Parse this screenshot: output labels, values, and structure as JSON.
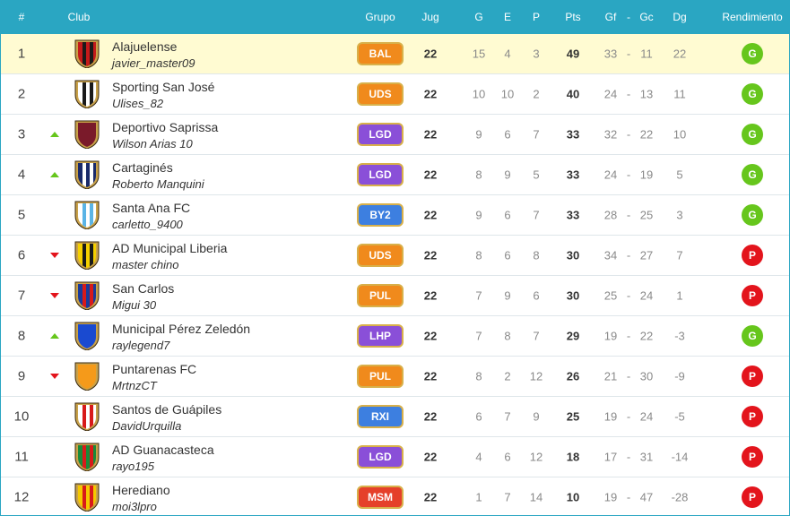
{
  "header": {
    "pos": "#",
    "club": "Club",
    "group": "Grupo",
    "jug": "Jug",
    "g": "G",
    "e": "E",
    "p": "P",
    "pts": "Pts",
    "gf": "Gf",
    "sep": "-",
    "gc": "Gc",
    "dg": "Dg",
    "rend": "Rendimiento"
  },
  "rend_colors": {
    "G": "#66c61c",
    "P": "#e3141c"
  },
  "highlight_color": "#fffbd2",
  "rows": [
    {
      "pos": 1,
      "club": "Alajuelense",
      "manager": "javier_master09",
      "crest": [
        "#c41a1a",
        "#1a1a1a"
      ],
      "group": "BAL",
      "group_color": "#f08a1c",
      "jug": 22,
      "g": 15,
      "e": 4,
      "p": 3,
      "pts": 49,
      "gf": 33,
      "gc": 11,
      "dg": 22,
      "rend": "G",
      "highlight": true
    },
    {
      "pos": 2,
      "club": "Sporting San José",
      "manager": "Ulises_82",
      "crest": [
        "#ffffff",
        "#1a1a1a"
      ],
      "group": "UDS",
      "group_color": "#f08a1c",
      "jug": 22,
      "g": 10,
      "e": 10,
      "p": 2,
      "pts": 40,
      "gf": 24,
      "gc": 13,
      "dg": 11,
      "rend": "G"
    },
    {
      "pos": 3,
      "trend": "up",
      "club": "Deportivo Saprissa",
      "manager": "Wilson Arias 10",
      "crest": [
        "#7a1a2a",
        "#7a1a2a"
      ],
      "group": "LGD",
      "group_color": "#8a4fd8",
      "jug": 22,
      "g": 9,
      "e": 6,
      "p": 7,
      "pts": 33,
      "gf": 32,
      "gc": 22,
      "dg": 10,
      "rend": "G"
    },
    {
      "pos": 4,
      "trend": "up",
      "club": "Cartaginés",
      "manager": "Roberto Manquini",
      "crest": [
        "#1a2a6a",
        "#ffffff"
      ],
      "group": "LGD",
      "group_color": "#8a4fd8",
      "jug": 22,
      "g": 8,
      "e": 9,
      "p": 5,
      "pts": 33,
      "gf": 24,
      "gc": 19,
      "dg": 5,
      "rend": "G"
    },
    {
      "pos": 5,
      "club": "Santa Ana FC",
      "manager": "carletto_9400",
      "crest": [
        "#ffffff",
        "#5ab4e6"
      ],
      "group": "BY2",
      "group_color": "#3d7fe0",
      "jug": 22,
      "g": 9,
      "e": 6,
      "p": 7,
      "pts": 33,
      "gf": 28,
      "gc": 25,
      "dg": 3,
      "rend": "G"
    },
    {
      "pos": 6,
      "trend": "down",
      "club": "AD Municipal Liberia",
      "manager": "master chino",
      "crest": [
        "#f5d000",
        "#1a1a1a"
      ],
      "group": "UDS",
      "group_color": "#f08a1c",
      "jug": 22,
      "g": 8,
      "e": 6,
      "p": 8,
      "pts": 30,
      "gf": 34,
      "gc": 27,
      "dg": 7,
      "rend": "P"
    },
    {
      "pos": 7,
      "trend": "down",
      "club": "San Carlos",
      "manager": "Migui 30",
      "crest": [
        "#1a3a9a",
        "#d81a1a"
      ],
      "group": "PUL",
      "group_color": "#f08a1c",
      "jug": 22,
      "g": 7,
      "e": 9,
      "p": 6,
      "pts": 30,
      "gf": 25,
      "gc": 24,
      "dg": 1,
      "rend": "P"
    },
    {
      "pos": 8,
      "trend": "up",
      "club": "Municipal Pérez Zeledón",
      "manager": "raylegend7",
      "crest": [
        "#1a4ad0",
        "#1a4ad0"
      ],
      "group": "LHP",
      "group_color": "#8a4fd8",
      "jug": 22,
      "g": 7,
      "e": 8,
      "p": 7,
      "pts": 29,
      "gf": 19,
      "gc": 22,
      "dg": -3,
      "rend": "G"
    },
    {
      "pos": 9,
      "trend": "down",
      "club": "Puntarenas FC",
      "manager": "MrtnzCT",
      "crest": [
        "#f59a1a",
        "#f59a1a"
      ],
      "group": "PUL",
      "group_color": "#f08a1c",
      "jug": 22,
      "g": 8,
      "e": 2,
      "p": 12,
      "pts": 26,
      "gf": 21,
      "gc": 30,
      "dg": -9,
      "rend": "P"
    },
    {
      "pos": 10,
      "club": "Santos de Guápiles",
      "manager": "DavidUrquilla",
      "crest": [
        "#ffffff",
        "#d81a1a"
      ],
      "group": "RXI",
      "group_color": "#3d7fe0",
      "jug": 22,
      "g": 6,
      "e": 7,
      "p": 9,
      "pts": 25,
      "gf": 19,
      "gc": 24,
      "dg": -5,
      "rend": "P"
    },
    {
      "pos": 11,
      "club": "AD Guanacasteca",
      "manager": "rayo195",
      "crest": [
        "#1a8a3a",
        "#d81a1a"
      ],
      "group": "LGD",
      "group_color": "#8a4fd8",
      "jug": 22,
      "g": 4,
      "e": 6,
      "p": 12,
      "pts": 18,
      "gf": 17,
      "gc": 31,
      "dg": -14,
      "rend": "P"
    },
    {
      "pos": 12,
      "club": "Herediano",
      "manager": "moi3lpro",
      "crest": [
        "#f5c800",
        "#d81a1a"
      ],
      "group": "MSM",
      "group_color": "#e5402a",
      "jug": 22,
      "g": 1,
      "e": 7,
      "p": 14,
      "pts": 10,
      "gf": 19,
      "gc": 47,
      "dg": -28,
      "rend": "P"
    }
  ]
}
